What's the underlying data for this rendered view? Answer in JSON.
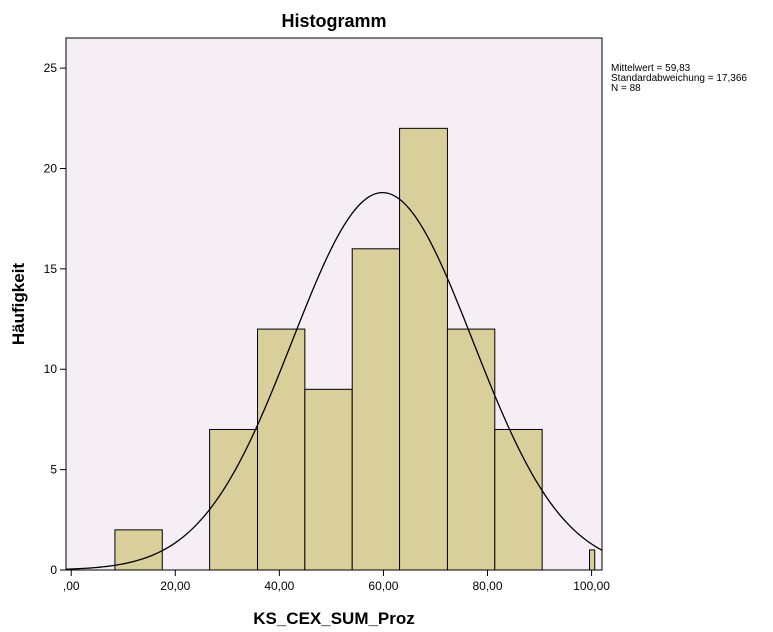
{
  "chart_data": {
    "type": "bar",
    "subtype": "histogram",
    "title": "Histogramm",
    "xlabel": "KS_CEX_SUM_Proz",
    "ylabel": "Häufigkeit",
    "xlim": [
      -1,
      102
    ],
    "ylim": [
      0,
      26.5
    ],
    "x_ticks": [
      0,
      20,
      40,
      60,
      80,
      100
    ],
    "x_tick_labels": [
      ",00",
      "20,00",
      "40,00",
      "60,00",
      "80,00",
      "100,00"
    ],
    "y_ticks": [
      0,
      5,
      10,
      15,
      20,
      25
    ],
    "y_tick_labels": [
      "0",
      "5",
      "10",
      "15",
      "20",
      "25"
    ],
    "bins": [
      {
        "start": 8.4,
        "end": 17.5,
        "count": 2
      },
      {
        "start": 17.5,
        "end": 26.6,
        "count": 0
      },
      {
        "start": 26.6,
        "end": 35.8,
        "count": 7
      },
      {
        "start": 35.8,
        "end": 44.9,
        "count": 12
      },
      {
        "start": 44.9,
        "end": 54.0,
        "count": 9
      },
      {
        "start": 54.0,
        "end": 63.1,
        "count": 16
      },
      {
        "start": 63.1,
        "end": 72.3,
        "count": 22
      },
      {
        "start": 72.3,
        "end": 81.4,
        "count": 12
      },
      {
        "start": 81.4,
        "end": 90.5,
        "count": 7
      },
      {
        "start": 90.5,
        "end": 99.6,
        "count": 0
      },
      {
        "start": 99.6,
        "end": 100.6,
        "count": 1
      }
    ],
    "normal_curve": {
      "mean": 59.83,
      "sd": 17.366,
      "n": 88,
      "peak": 18.8
    },
    "stats_lines": [
      "Mittelwert = 59,83",
      "Standardabweichung = 17,366",
      "N = 88"
    ],
    "grid": false,
    "legend": "none",
    "colors": {
      "plot_background": "#f5eef5",
      "bar_fill": "#d9cf9a",
      "bar_stroke": "#000000",
      "curve": "#000000"
    }
  }
}
